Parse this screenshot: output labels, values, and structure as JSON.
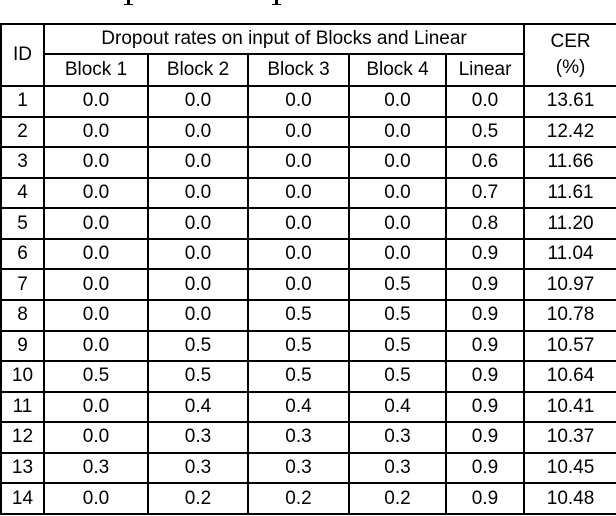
{
  "colors": {
    "background": "#ffffff",
    "border": "#000000",
    "text": "#000000"
  },
  "caption_fragment": {
    "note": "two descender tips of a cropped caption line above the table"
  },
  "table": {
    "id_header": "ID",
    "span_header": "Dropout rates on input of Blocks and Linear",
    "sub_headers": [
      "Block 1",
      "Block 2",
      "Block 3",
      "Block 4",
      "Linear"
    ],
    "cer_header": [
      "CER",
      "(%)"
    ],
    "rows": [
      {
        "cells": [
          "1",
          "0.0",
          "0.0",
          "0.0",
          "0.0",
          "0.0",
          "13.61"
        ],
        "bold_cer": false
      },
      {
        "cells": [
          "2",
          "0.0",
          "0.0",
          "0.0",
          "0.0",
          "0.5",
          "12.42"
        ],
        "bold_cer": false
      },
      {
        "cells": [
          "3",
          "0.0",
          "0.0",
          "0.0",
          "0.0",
          "0.6",
          "11.66"
        ],
        "bold_cer": false
      },
      {
        "cells": [
          "4",
          "0.0",
          "0.0",
          "0.0",
          "0.0",
          "0.7",
          "11.61"
        ],
        "bold_cer": false
      },
      {
        "cells": [
          "5",
          "0.0",
          "0.0",
          "0.0",
          "0.0",
          "0.8",
          "11.20"
        ],
        "bold_cer": false
      },
      {
        "cells": [
          "6",
          "0.0",
          "0.0",
          "0.0",
          "0.0",
          "0.9",
          "11.04"
        ],
        "bold_cer": false
      },
      {
        "cells": [
          "7",
          "0.0",
          "0.0",
          "0.0",
          "0.5",
          "0.9",
          "10.97"
        ],
        "bold_cer": false
      },
      {
        "cells": [
          "8",
          "0.0",
          "0.0",
          "0.5",
          "0.5",
          "0.9",
          "10.78"
        ],
        "bold_cer": false
      },
      {
        "cells": [
          "9",
          "0.0",
          "0.5",
          "0.5",
          "0.5",
          "0.9",
          "10.57"
        ],
        "bold_cer": false
      },
      {
        "cells": [
          "10",
          "0.5",
          "0.5",
          "0.5",
          "0.5",
          "0.9",
          "10.64"
        ],
        "bold_cer": false
      },
      {
        "cells": [
          "11",
          "0.0",
          "0.4",
          "0.4",
          "0.4",
          "0.9",
          "10.41"
        ],
        "bold_cer": false
      },
      {
        "cells": [
          "12",
          "0.0",
          "0.3",
          "0.3",
          "0.3",
          "0.9",
          "10.37"
        ],
        "bold_cer": true
      },
      {
        "cells": [
          "13",
          "0.3",
          "0.3",
          "0.3",
          "0.3",
          "0.9",
          "10.45"
        ],
        "bold_cer": false
      },
      {
        "cells": [
          "14",
          "0.0",
          "0.2",
          "0.2",
          "0.2",
          "0.9",
          "10.48"
        ],
        "bold_cer": false
      }
    ]
  }
}
